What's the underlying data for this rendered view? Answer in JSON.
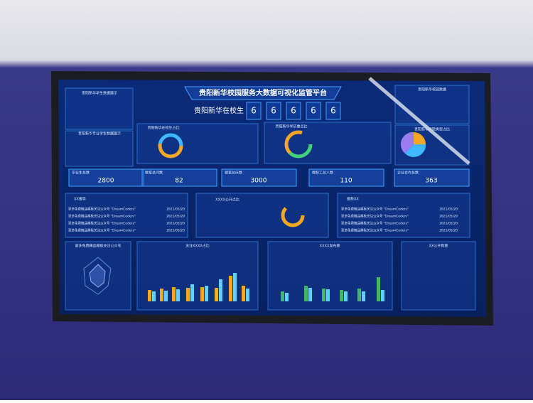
{
  "header": {
    "title": "贵阳新华校园服务大数据可视化监管平台"
  },
  "student_count": {
    "label": "贵阳新华在校生",
    "digits": [
      "6",
      "6",
      "6",
      "6",
      "6"
    ]
  },
  "panels": {
    "top_left": "贵阳新华学生数据展示",
    "mid_left": "贵阳新华专业学生数据展示",
    "donut_a": "贵阳新华在校生占比",
    "donut_b": "贵阳新华学历重点比",
    "top_right": "贵阳新华校园数据",
    "pie_right": "贵阳新华学院类型占比"
  },
  "stats": [
    {
      "label": "毕业生总数",
      "value": 2800
    },
    {
      "label": "教室总间数",
      "value": 82
    },
    {
      "label": "寝室总床数",
      "value": 3000
    },
    {
      "label": "教职工总人数",
      "value": 110
    },
    {
      "label": "企业合作总数",
      "value": 363
    }
  ],
  "news_left": {
    "title": "XX报导",
    "items": [
      {
        "text": "更多免费精品模板关注公众号 \"DreamCoders\"",
        "date": "2021/05/20"
      },
      {
        "text": "更多免费精品模板关注公众号 \"DreamCoders\"",
        "date": "2021/05/20"
      },
      {
        "text": "更多免费精品模板关注公众号 \"DreamCoders\"",
        "date": "2021/05/20"
      },
      {
        "text": "更多免费精品模板关注公众号 \"DreamCoders\"",
        "date": "2021/05/20"
      }
    ]
  },
  "center_panel": {
    "title": "XXXX公开点比"
  },
  "news_right": {
    "title": "最新XX",
    "items": [
      {
        "text": "更多免费精品模板关注公众号 \"DreamCoders\"",
        "date": "2021/05/20"
      },
      {
        "text": "更多免费精品模板关注公众号 \"DreamCoders\"",
        "date": "2021/05/20"
      },
      {
        "text": "更多免费精品模板关注公众号 \"DreamCoders\"",
        "date": "2021/05/20"
      },
      {
        "text": "更多免费精品模板关注公众号 \"DreamCoders\"",
        "date": "2021/05/20"
      }
    ]
  },
  "bottom": {
    "radar": "更多免费精品模板关注公众号",
    "bars_a": "关注XXXX占比",
    "bars_b": "XXXX发布量",
    "list": "XX公开数量"
  }
}
